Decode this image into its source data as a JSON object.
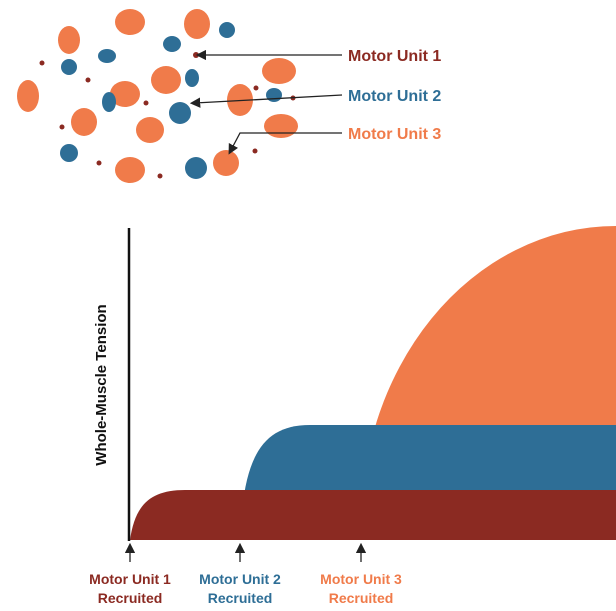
{
  "legend": [
    {
      "label": "Motor Unit 1"
    },
    {
      "label": "Motor Unit 2"
    },
    {
      "label": "Motor Unit 3"
    }
  ],
  "axis": {
    "y_label": "Whole-Muscle Tension"
  },
  "recruitment": [
    {
      "unit": "Motor Unit 1",
      "status": "Recruited"
    },
    {
      "unit": "Motor Unit 2",
      "status": "Recruited"
    },
    {
      "unit": "Motor Unit 3",
      "status": "Recruited"
    }
  ]
}
